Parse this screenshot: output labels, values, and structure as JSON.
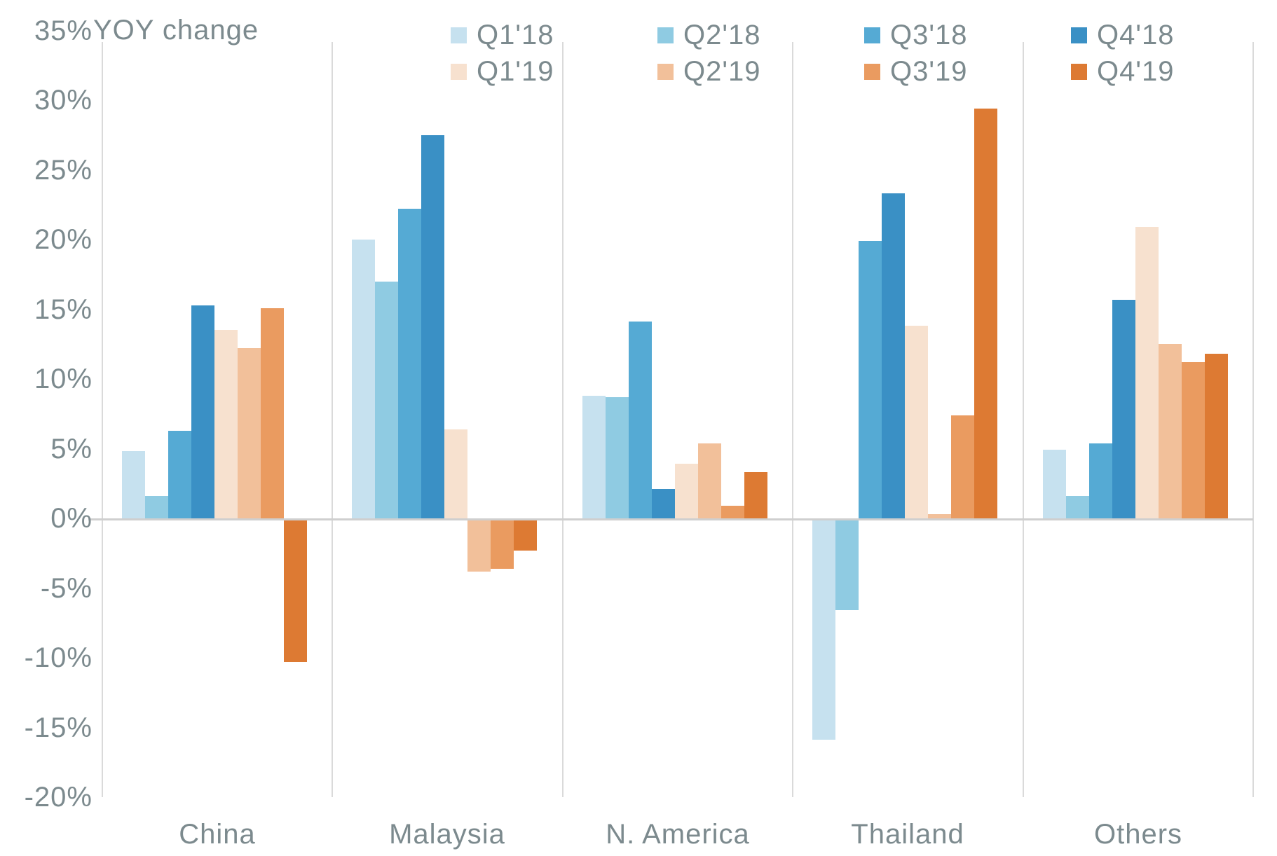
{
  "chart_data": {
    "type": "bar",
    "title": "YOY change",
    "categories": [
      "China",
      "Malaysia",
      "N. America",
      "Thailand",
      "Others"
    ],
    "series": [
      {
        "name": "Q1'18",
        "color": "#c6e1ef",
        "values": [
          4.8,
          20.0,
          8.8,
          -15.9,
          4.9
        ]
      },
      {
        "name": "Q2'18",
        "color": "#8fcbe2",
        "values": [
          1.6,
          17.0,
          8.7,
          -6.6,
          1.6
        ]
      },
      {
        "name": "Q3'18",
        "color": "#55aad4",
        "values": [
          6.3,
          22.2,
          14.1,
          19.9,
          5.4
        ]
      },
      {
        "name": "Q4'18",
        "color": "#3a90c5",
        "values": [
          15.3,
          27.5,
          2.1,
          23.3,
          15.7
        ]
      },
      {
        "name": "Q1'19",
        "color": "#f7e1cf",
        "values": [
          13.5,
          6.4,
          3.9,
          13.8,
          20.9
        ]
      },
      {
        "name": "Q2'19",
        "color": "#f2c09a",
        "values": [
          12.2,
          -3.8,
          5.4,
          0.3,
          12.5
        ]
      },
      {
        "name": "Q3'19",
        "color": "#ea9b60",
        "values": [
          15.1,
          -3.6,
          0.9,
          7.4,
          11.2
        ]
      },
      {
        "name": "Q4'19",
        "color": "#dd7a33",
        "values": [
          -10.3,
          -2.3,
          3.3,
          29.4,
          11.8
        ]
      }
    ],
    "ylim": [
      -20,
      35
    ],
    "ytick_step": 5,
    "ytick_values": [
      35,
      30,
      25,
      20,
      15,
      10,
      5,
      0,
      -5,
      -10,
      -15,
      -20
    ],
    "ytick_labels": [
      "35%",
      "30%",
      "25%",
      "20%",
      "15%",
      "10%",
      "5%",
      "0%",
      "-5%",
      "-10%",
      "-15%",
      "-20%"
    ],
    "legend_position": "top",
    "legend_rows": [
      [
        "Q1'18",
        "Q2'18",
        "Q3'18",
        "Q4'18"
      ],
      [
        "Q1'19",
        "Q2'19",
        "Q3'19",
        "Q4'19"
      ]
    ],
    "grid": "vertical-group-separators-only",
    "text_color": "#7c8a8e",
    "grid_color": "#dadada",
    "zero_line_color": "#cfcfcf",
    "background_color": "#ffffff"
  }
}
